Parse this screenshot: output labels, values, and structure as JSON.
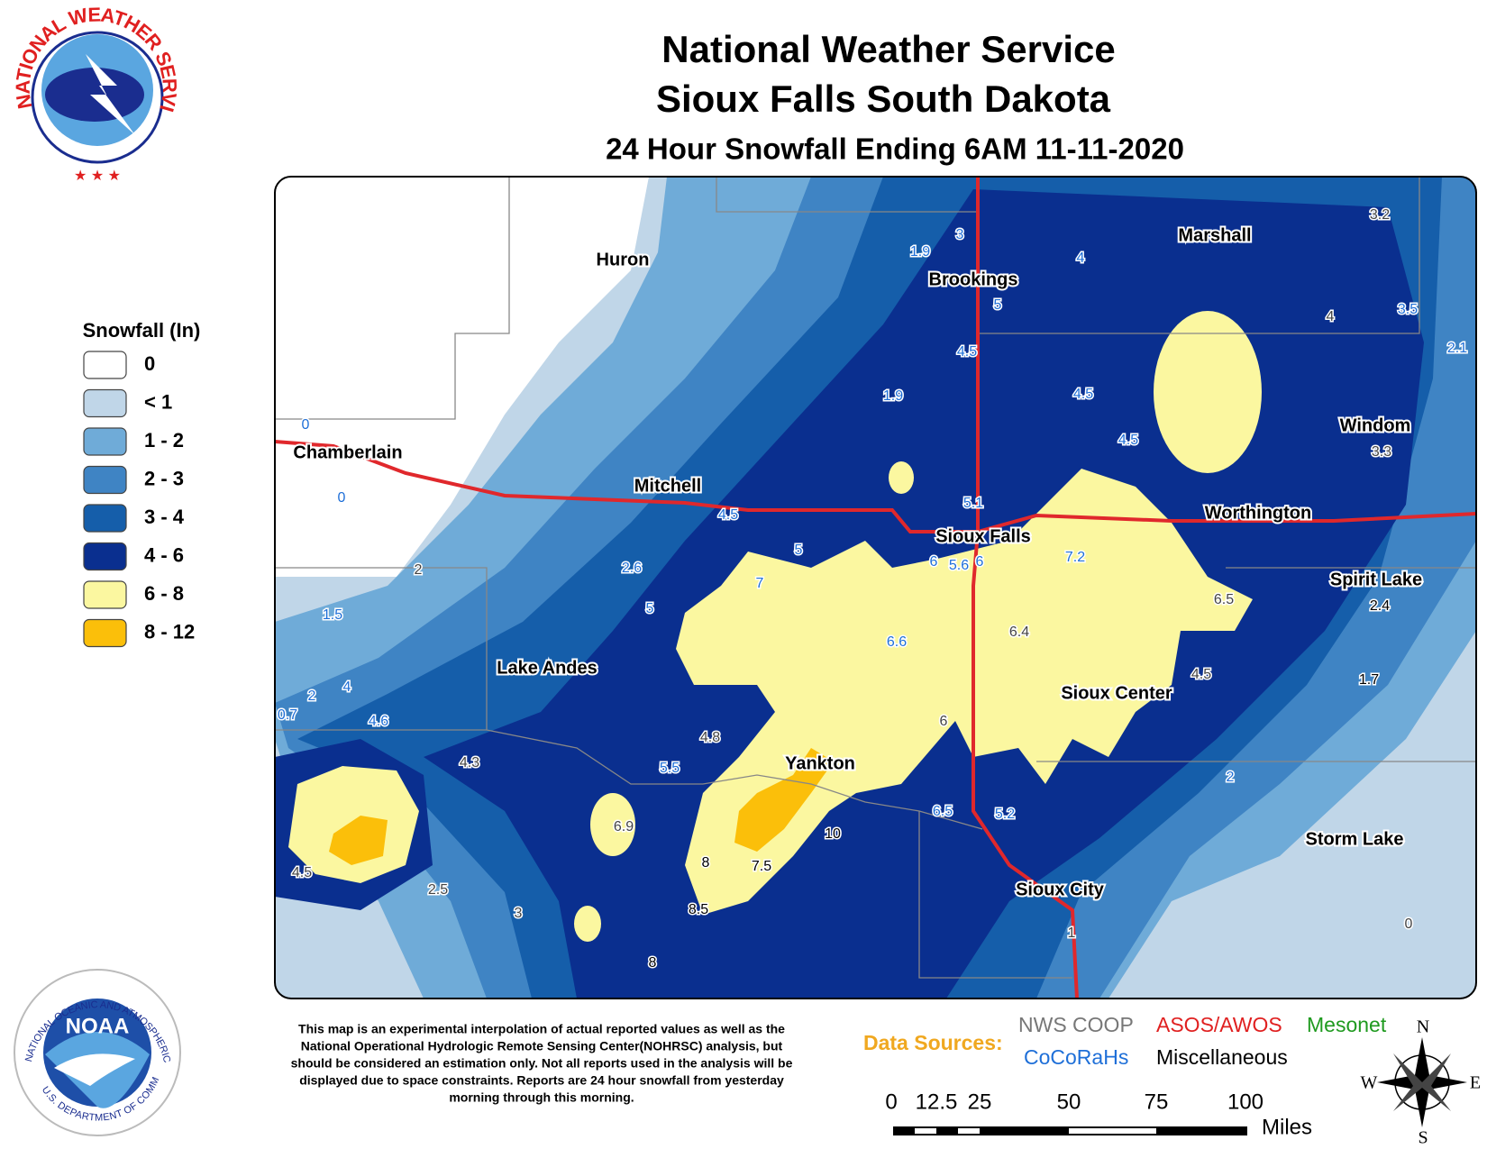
{
  "header": {
    "title": "National Weather Service",
    "subtitle": "Sioux Falls South Dakota",
    "map_title": "24 Hour Snowfall Ending 6AM 11-11-2020"
  },
  "logos": {
    "nws": "NATIONAL WEATHER SERVICE",
    "noaa": "NOAA",
    "noaa_ring_top": "NATIONAL OCEANIC AND ATMOSPHERIC ADMINISTRATION",
    "noaa_ring_bottom": "U.S. DEPARTMENT OF COMMERCE"
  },
  "legend": {
    "title": "Snowfall (In)",
    "items": [
      {
        "label": "0",
        "color": "#ffffff"
      },
      {
        "label": "< 1",
        "color": "#c0d6e8"
      },
      {
        "label": "1 - 2",
        "color": "#6fabd8"
      },
      {
        "label": "2 - 3",
        "color": "#3f84c4"
      },
      {
        "label": "3 - 4",
        "color": "#155eaa"
      },
      {
        "label": "4 - 6",
        "color": "#0a2f8f"
      },
      {
        "label": "6 - 8",
        "color": "#fbf7a0"
      },
      {
        "label": "8 - 12",
        "color": "#fbbf0a"
      }
    ]
  },
  "cities": [
    "Huron",
    "Brookings",
    "Marshall",
    "Windom",
    "Chamberlain",
    "Mitchell",
    "Worthington",
    "Sioux Falls",
    "Spirit Lake",
    "Lake Andes",
    "Sioux Center",
    "Yankton",
    "Storm Lake",
    "Sioux City"
  ],
  "reports": [
    3.2,
    3,
    1.9,
    4,
    5,
    4,
    3.5,
    2.1,
    4.5,
    1.9,
    4.5,
    4.5,
    3.3,
    0,
    0,
    5.1,
    4.5,
    5,
    6,
    5.6,
    6,
    7.2,
    2,
    2.6,
    7,
    6.5,
    2.4,
    1.5,
    5,
    6.6,
    6.4,
    4.5,
    1.7,
    0.7,
    2,
    4,
    4.6,
    4.8,
    6,
    4.3,
    5.5,
    2,
    6.5,
    5.2,
    6.9,
    10,
    8,
    7.5,
    4.5,
    2.5,
    3,
    8.5,
    1,
    0,
    8
  ],
  "disclaimer": [
    "This map is an experimental interpolation of actual reported values as well as the",
    "National Operational Hydrologic Remote Sensing Center(NOHRSC) analysis, but",
    "should be considered an estimation only. Not all reports used in the analysis will be",
    "displayed due to space constraints. Reports are 24 hour snowfall from yesterday",
    "morning through this morning."
  ],
  "data_sources": {
    "title": "Data Sources:",
    "items": [
      "NWS COOP",
      "ASOS/AWOS",
      "Mesonet",
      "CoCoRaHs",
      "Miscellaneous"
    ]
  },
  "scale": {
    "ticks": [
      0,
      12.5,
      25,
      50,
      75,
      100
    ],
    "unit": "Miles"
  },
  "compass": [
    "N",
    "E",
    "S",
    "W"
  ]
}
